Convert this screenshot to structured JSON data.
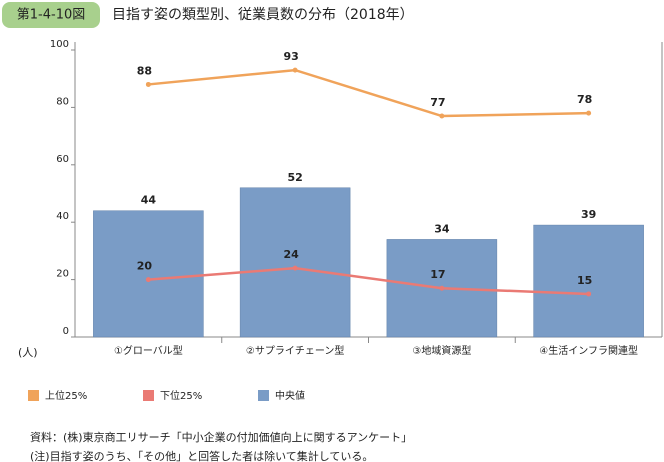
{
  "chart_data": {
    "type": "bar",
    "label": "第1-4-10図",
    "title": "目指す姿の類型別、従業員数の分布（2018年）",
    "ylabel": "(人)",
    "categories": [
      "①グローバル型",
      "②サプライチェーン型",
      "③地域資源型",
      "④生活インフラ関連型"
    ],
    "series": [
      {
        "name": "上位25%",
        "type": "line",
        "color": "#f0a35a",
        "values": [
          88,
          93,
          77,
          78
        ]
      },
      {
        "name": "下位25%",
        "type": "line",
        "color": "#ea7a74",
        "values": [
          20,
          24,
          17,
          15
        ]
      },
      {
        "name": "中央値",
        "type": "bar",
        "color": "#7a9cc6",
        "values": [
          44,
          52,
          34,
          39
        ]
      }
    ],
    "ylim": [
      0,
      100
    ],
    "yticks": [
      0,
      20,
      40,
      60,
      80,
      100
    ],
    "grid": false,
    "notes": [
      "資料：(株)東京商工リサーチ「中小企業の付加価値向上に関するアンケート」",
      "(注)目指す姿のうち、「その他」と回答した者は除いて集計している。"
    ]
  }
}
